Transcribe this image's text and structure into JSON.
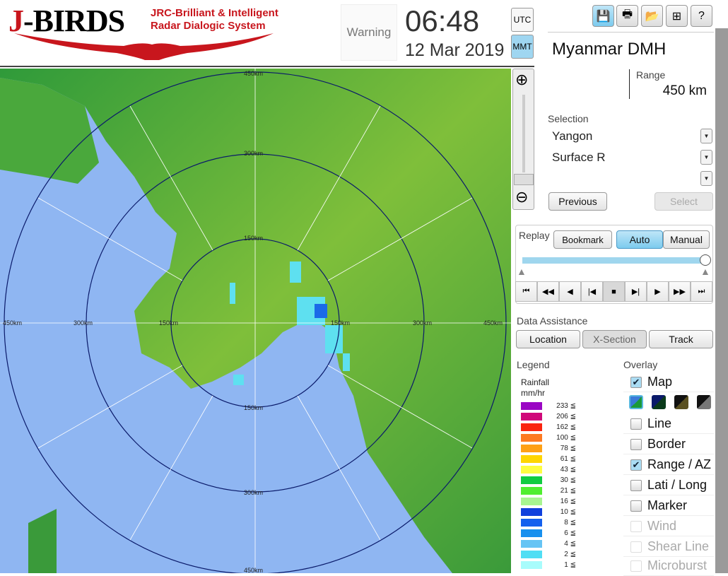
{
  "header": {
    "logo_main": "J-BIRDS",
    "logo_line1": "JRC-Brilliant & Intelligent",
    "logo_line2": "Radar Dialogic System",
    "warning": "Warning",
    "time": "06:48",
    "date": "12 Mar 2019",
    "tz_utc": "UTC",
    "tz_local": "MMT",
    "tz_active": "MMT"
  },
  "toolbar": {
    "icons": [
      "save-icon",
      "print-icon",
      "folder-open-icon",
      "add-window-icon",
      "help-icon"
    ],
    "help_glyph": "?"
  },
  "site": {
    "name": "Myanmar DMH",
    "range_label": "Range",
    "range_value": "450 km"
  },
  "selection": {
    "label": "Selection",
    "radar": "Yangon",
    "product": "Surface R",
    "third": "",
    "previous": "Previous",
    "select": "Select"
  },
  "replay": {
    "label": "Replay",
    "bookmark": "Bookmark",
    "auto": "Auto",
    "manual": "Manual",
    "mode": "Auto",
    "position": 1.0
  },
  "data_assistance": {
    "label": "Data Assistance",
    "location": "Location",
    "xsection": "X-Section",
    "track": "Track"
  },
  "legend": {
    "label": "Legend",
    "title1": "Rainfall",
    "title2": "mm/hr",
    "items": [
      {
        "v": "233 ≦",
        "c": "#9a06c4"
      },
      {
        "v": "206 ≦",
        "c": "#d0087a"
      },
      {
        "v": "162 ≦",
        "c": "#fa2410"
      },
      {
        "v": "100 ≦",
        "c": "#fd7a22"
      },
      {
        "v": "78 ≦",
        "c": "#fea016"
      },
      {
        "v": "61 ≦",
        "c": "#fed500"
      },
      {
        "v": "43 ≦",
        "c": "#fdfd40"
      },
      {
        "v": "30 ≦",
        "c": "#10cc40"
      },
      {
        "v": "21 ≦",
        "c": "#50ee30"
      },
      {
        "v": "16 ≦",
        "c": "#a8f590"
      },
      {
        "v": "10 ≦",
        "c": "#1040dd"
      },
      {
        "v": "8 ≦",
        "c": "#1460ee"
      },
      {
        "v": "6 ≦",
        "c": "#1890ee"
      },
      {
        "v": "4 ≦",
        "c": "#66c4f4"
      },
      {
        "v": "2 ≦",
        "c": "#50def4"
      },
      {
        "v": "1 ≦",
        "c": "#a8fcfc"
      }
    ]
  },
  "overlay": {
    "label": "Overlay",
    "items": [
      {
        "label": "Map",
        "checked": true,
        "enabled": true
      },
      {
        "label": "Line",
        "checked": false,
        "enabled": true
      },
      {
        "label": "Border",
        "checked": false,
        "enabled": true
      },
      {
        "label": "Range / AZ",
        "checked": true,
        "enabled": true
      },
      {
        "label": "Lati / Long",
        "checked": false,
        "enabled": true
      },
      {
        "label": "Marker",
        "checked": false,
        "enabled": true
      },
      {
        "label": "Wind",
        "checked": false,
        "enabled": false
      },
      {
        "label": "Shear Line",
        "checked": false,
        "enabled": false
      },
      {
        "label": "Microburst",
        "checked": false,
        "enabled": false
      }
    ]
  },
  "map": {
    "range_labels": {
      "r150": "150km",
      "r300": "300km",
      "r450": "450km"
    },
    "left300": "300km",
    "right300": "300km",
    "left150": "150km",
    "right150": "150km",
    "left450": "450km",
    "right450": "450km",
    "bottom150": "150km",
    "bottom300": "300km",
    "bottom450": "450km",
    "top150": "150km",
    "top300": "300km",
    "top450": "450km"
  }
}
